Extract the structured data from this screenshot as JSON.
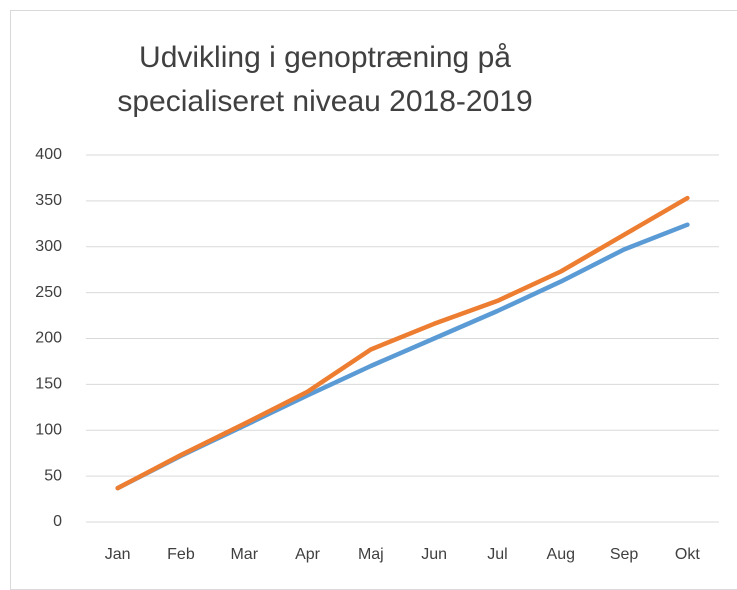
{
  "chart_data": {
    "type": "line",
    "title": "Udvikling i genoptræning på specialiseret niveau 2018-2019",
    "categories": [
      "Jan",
      "Feb",
      "Mar",
      "Apr",
      "Maj",
      "Jun",
      "Jul",
      "Aug",
      "Sep",
      "Okt"
    ],
    "series": [
      {
        "color": "#5b9bd5",
        "values": [
          37,
          72,
          105,
          138,
          170,
          200,
          230,
          262,
          297,
          324
        ]
      },
      {
        "color": "#ed7d31",
        "values": [
          37,
          73,
          107,
          142,
          188,
          216,
          241,
          273,
          313,
          353
        ]
      }
    ],
    "ylim": [
      0,
      400
    ],
    "yticks": [
      0,
      50,
      100,
      150,
      200,
      250,
      300,
      350,
      400
    ],
    "grid": true
  }
}
